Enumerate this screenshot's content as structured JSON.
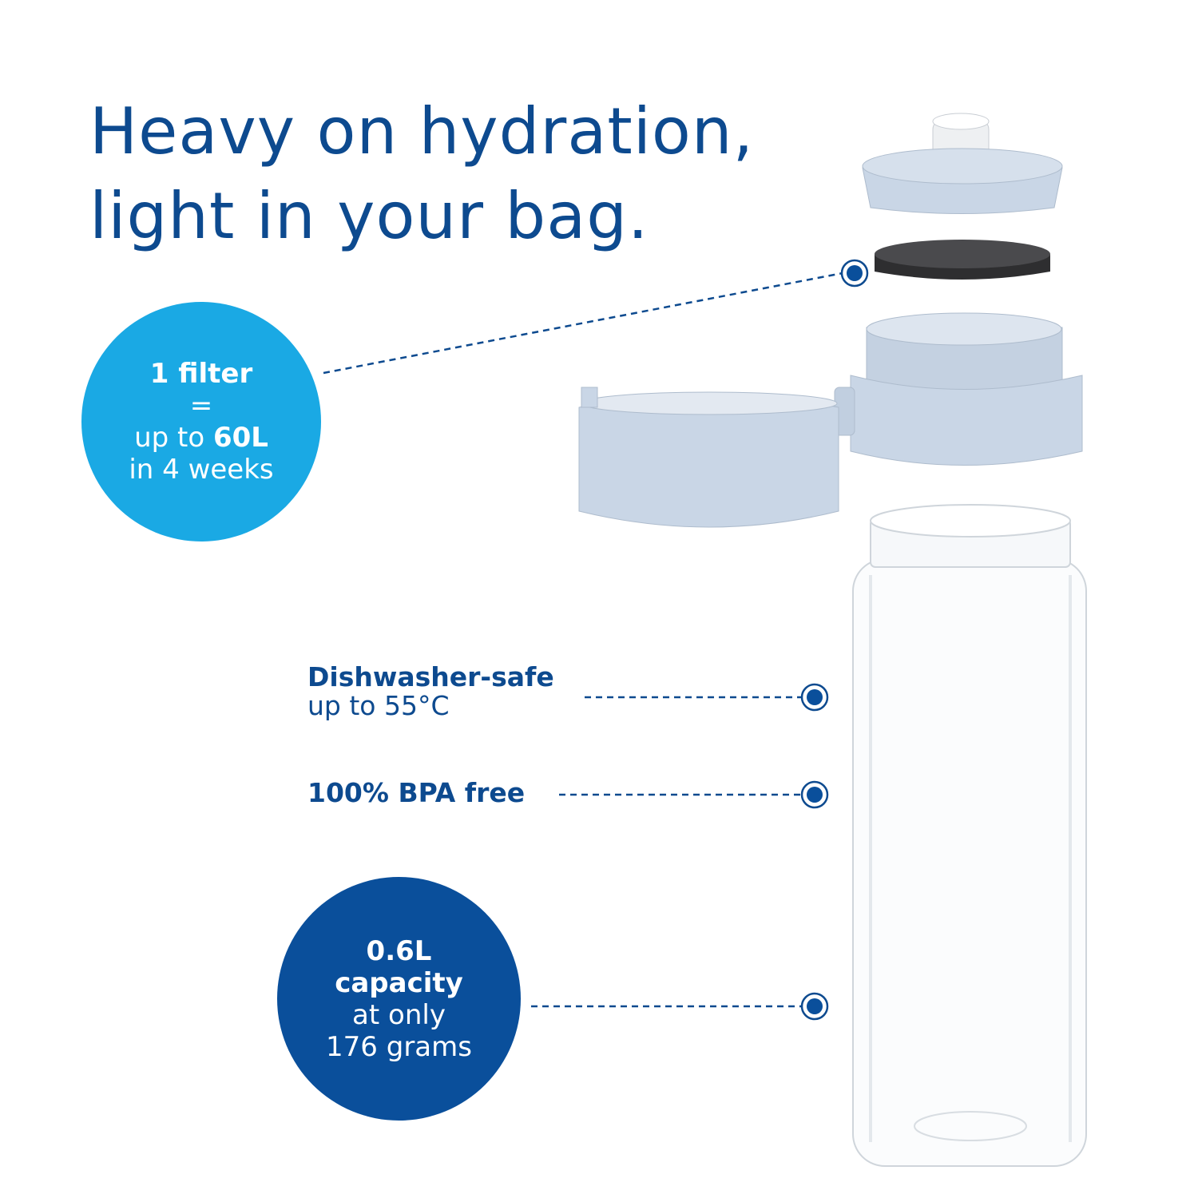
{
  "headline": {
    "line1": "Heavy on hydration,",
    "line2": "light in your bag."
  },
  "filter_badge": {
    "line1": "1 filter",
    "line2": "=",
    "line3_prefix": "up to ",
    "line3_value": "60L",
    "line4": "in 4 weeks",
    "color": "#1aa9e4"
  },
  "features": {
    "dishwasher_title": "Dishwasher-safe",
    "dishwasher_detail": "up to 55°C",
    "bpa": "100% BPA free"
  },
  "capacity_badge": {
    "line1": "0.6L",
    "line2": "capacity",
    "line3": "at only",
    "line4": "176 grams",
    "color": "#0a4f9b"
  },
  "colors": {
    "text": "#0d4a8f",
    "part_blue": "#c9d6e6",
    "filter_disc": "#3a3a3c"
  }
}
